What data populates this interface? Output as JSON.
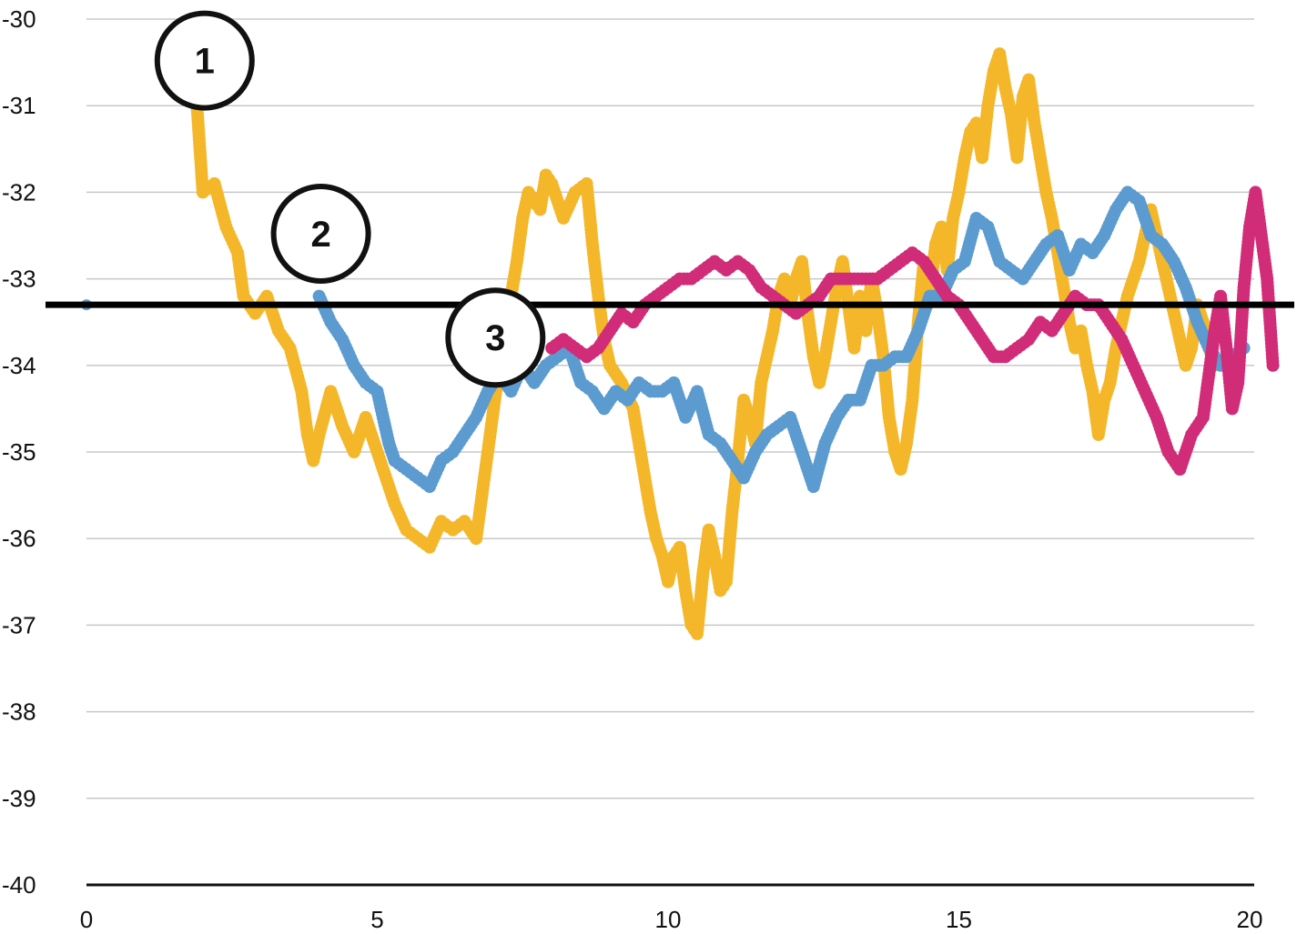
{
  "chart_data": {
    "type": "scatter",
    "title": "",
    "xlabel": "",
    "ylabel": "",
    "xlim": [
      0,
      20
    ],
    "ylim": [
      -40,
      -30
    ],
    "x_ticks": [
      "0",
      "5",
      "10",
      "15",
      "20"
    ],
    "y_ticks": [
      "-30",
      "-31",
      "-32",
      "-33",
      "-34",
      "-35",
      "-36",
      "-37",
      "-38",
      "-39",
      "-40"
    ],
    "grid": "horizontal",
    "legend": "none",
    "reference_line": {
      "y": -33.3,
      "color": "#000000"
    },
    "markers": [
      {
        "label": "1",
        "x": 2.0,
        "y": -30.5
      },
      {
        "label": "2",
        "x": 4.0,
        "y": -32.5
      },
      {
        "label": "3",
        "x": 7.0,
        "y": -33.7
      }
    ],
    "series": [
      {
        "color": "#F4B72A",
        "points": [
          [
            1.9,
            -31.0
          ],
          [
            2.0,
            -32.0
          ],
          [
            2.2,
            -31.9
          ],
          [
            2.4,
            -32.4
          ],
          [
            2.6,
            -32.7
          ],
          [
            2.7,
            -33.2
          ],
          [
            2.9,
            -33.4
          ],
          [
            3.1,
            -33.2
          ],
          [
            3.3,
            -33.6
          ],
          [
            3.5,
            -33.8
          ],
          [
            3.7,
            -34.3
          ],
          [
            3.8,
            -34.8
          ],
          [
            3.9,
            -35.1
          ],
          [
            4.0,
            -34.8
          ],
          [
            4.2,
            -34.3
          ],
          [
            4.4,
            -34.7
          ],
          [
            4.6,
            -35.0
          ],
          [
            4.8,
            -34.6
          ],
          [
            5.0,
            -35.0
          ],
          [
            5.1,
            -35.2
          ],
          [
            5.3,
            -35.6
          ],
          [
            5.5,
            -35.9
          ],
          [
            5.7,
            -36.0
          ],
          [
            5.9,
            -36.1
          ],
          [
            6.1,
            -35.8
          ],
          [
            6.3,
            -35.9
          ],
          [
            6.5,
            -35.8
          ],
          [
            6.7,
            -36.0
          ],
          [
            6.8,
            -35.5
          ],
          [
            6.9,
            -35.0
          ],
          [
            7.0,
            -34.5
          ],
          [
            7.1,
            -34.0
          ],
          [
            7.2,
            -33.6
          ],
          [
            7.3,
            -33.2
          ],
          [
            7.4,
            -32.8
          ],
          [
            7.5,
            -32.3
          ],
          [
            7.6,
            -32.0
          ],
          [
            7.7,
            -32.1
          ],
          [
            7.8,
            -32.2
          ],
          [
            7.9,
            -31.8
          ],
          [
            8.0,
            -31.9
          ],
          [
            8.2,
            -32.3
          ],
          [
            8.4,
            -32.0
          ],
          [
            8.6,
            -31.9
          ],
          [
            8.7,
            -32.6
          ],
          [
            8.8,
            -33.2
          ],
          [
            8.9,
            -33.7
          ],
          [
            9.0,
            -34.0
          ],
          [
            9.2,
            -34.2
          ],
          [
            9.4,
            -34.5
          ],
          [
            9.5,
            -34.9
          ],
          [
            9.6,
            -35.3
          ],
          [
            9.7,
            -35.7
          ],
          [
            9.8,
            -36.0
          ],
          [
            9.9,
            -36.2
          ],
          [
            10.0,
            -36.5
          ],
          [
            10.1,
            -36.2
          ],
          [
            10.2,
            -36.1
          ],
          [
            10.3,
            -36.6
          ],
          [
            10.4,
            -37.0
          ],
          [
            10.5,
            -37.1
          ],
          [
            10.6,
            -36.4
          ],
          [
            10.7,
            -35.9
          ],
          [
            10.8,
            -36.2
          ],
          [
            10.9,
            -36.6
          ],
          [
            11.0,
            -36.5
          ],
          [
            11.1,
            -35.7
          ],
          [
            11.2,
            -35.1
          ],
          [
            11.3,
            -34.4
          ],
          [
            11.4,
            -34.6
          ],
          [
            11.5,
            -34.9
          ],
          [
            11.6,
            -34.2
          ],
          [
            11.7,
            -33.9
          ],
          [
            11.8,
            -33.6
          ],
          [
            11.9,
            -33.2
          ],
          [
            12.0,
            -33.0
          ],
          [
            12.1,
            -33.3
          ],
          [
            12.2,
            -33.0
          ],
          [
            12.3,
            -32.8
          ],
          [
            12.4,
            -33.4
          ],
          [
            12.5,
            -33.9
          ],
          [
            12.6,
            -34.2
          ],
          [
            12.7,
            -33.9
          ],
          [
            12.8,
            -33.5
          ],
          [
            12.9,
            -33.1
          ],
          [
            13.0,
            -32.8
          ],
          [
            13.1,
            -33.3
          ],
          [
            13.2,
            -33.8
          ],
          [
            13.3,
            -33.2
          ],
          [
            13.4,
            -33.6
          ],
          [
            13.5,
            -33.0
          ],
          [
            13.6,
            -33.4
          ],
          [
            13.7,
            -33.9
          ],
          [
            13.8,
            -34.6
          ],
          [
            13.9,
            -35.0
          ],
          [
            14.0,
            -35.2
          ],
          [
            14.1,
            -34.9
          ],
          [
            14.2,
            -34.4
          ],
          [
            14.3,
            -33.5
          ],
          [
            14.4,
            -32.8
          ],
          [
            14.5,
            -33.2
          ],
          [
            14.6,
            -32.6
          ],
          [
            14.7,
            -32.4
          ],
          [
            14.8,
            -32.9
          ],
          [
            14.9,
            -32.3
          ],
          [
            15.0,
            -32.0
          ],
          [
            15.1,
            -31.6
          ],
          [
            15.2,
            -31.3
          ],
          [
            15.3,
            -31.2
          ],
          [
            15.4,
            -31.6
          ],
          [
            15.5,
            -31.0
          ],
          [
            15.6,
            -30.6
          ],
          [
            15.7,
            -30.4
          ],
          [
            15.8,
            -30.8
          ],
          [
            15.9,
            -31.1
          ],
          [
            16.0,
            -31.6
          ],
          [
            16.1,
            -30.9
          ],
          [
            16.2,
            -30.7
          ],
          [
            16.3,
            -31.2
          ],
          [
            16.4,
            -31.6
          ],
          [
            16.5,
            -32.0
          ],
          [
            16.6,
            -32.3
          ],
          [
            16.7,
            -32.7
          ],
          [
            16.8,
            -33.1
          ],
          [
            16.9,
            -33.5
          ],
          [
            17.0,
            -33.8
          ],
          [
            17.1,
            -33.6
          ],
          [
            17.2,
            -34.0
          ],
          [
            17.3,
            -34.3
          ],
          [
            17.4,
            -34.8
          ],
          [
            17.5,
            -34.4
          ],
          [
            17.6,
            -34.2
          ],
          [
            17.7,
            -33.8
          ],
          [
            17.8,
            -33.5
          ],
          [
            17.9,
            -33.2
          ],
          [
            18.0,
            -33.0
          ],
          [
            18.1,
            -32.8
          ],
          [
            18.2,
            -32.5
          ],
          [
            18.3,
            -32.2
          ],
          [
            18.4,
            -32.5
          ],
          [
            18.5,
            -32.8
          ],
          [
            18.6,
            -33.1
          ],
          [
            18.7,
            -33.4
          ],
          [
            18.8,
            -33.7
          ],
          [
            18.9,
            -34.0
          ],
          [
            19.0,
            -33.8
          ],
          [
            19.1,
            -33.3
          ],
          [
            19.2,
            -33.5
          ],
          [
            19.3,
            -33.8
          ],
          [
            19.4,
            -34.0
          ]
        ]
      },
      {
        "color": "#5B9BD0",
        "points": [
          [
            4.0,
            -33.2
          ],
          [
            4.2,
            -33.5
          ],
          [
            4.4,
            -33.7
          ],
          [
            4.6,
            -34.0
          ],
          [
            4.8,
            -34.2
          ],
          [
            5.0,
            -34.3
          ],
          [
            5.1,
            -34.6
          ],
          [
            5.2,
            -34.9
          ],
          [
            5.3,
            -35.1
          ],
          [
            5.5,
            -35.2
          ],
          [
            5.7,
            -35.3
          ],
          [
            5.9,
            -35.4
          ],
          [
            6.1,
            -35.1
          ],
          [
            6.3,
            -35.0
          ],
          [
            6.5,
            -34.8
          ],
          [
            6.7,
            -34.6
          ],
          [
            6.9,
            -34.3
          ],
          [
            7.1,
            -34.1
          ],
          [
            7.3,
            -34.3
          ],
          [
            7.5,
            -34.0
          ],
          [
            7.7,
            -34.2
          ],
          [
            7.9,
            -34.0
          ],
          [
            8.1,
            -33.9
          ],
          [
            8.3,
            -33.8
          ],
          [
            8.5,
            -34.2
          ],
          [
            8.7,
            -34.3
          ],
          [
            8.9,
            -34.5
          ],
          [
            9.1,
            -34.3
          ],
          [
            9.3,
            -34.4
          ],
          [
            9.5,
            -34.2
          ],
          [
            9.7,
            -34.3
          ],
          [
            9.9,
            -34.3
          ],
          [
            10.1,
            -34.2
          ],
          [
            10.3,
            -34.6
          ],
          [
            10.5,
            -34.3
          ],
          [
            10.7,
            -34.8
          ],
          [
            10.9,
            -34.9
          ],
          [
            11.1,
            -35.1
          ],
          [
            11.3,
            -35.3
          ],
          [
            11.5,
            -35.0
          ],
          [
            11.7,
            -34.8
          ],
          [
            11.9,
            -34.7
          ],
          [
            12.1,
            -34.6
          ],
          [
            12.3,
            -35.0
          ],
          [
            12.5,
            -35.4
          ],
          [
            12.7,
            -34.9
          ],
          [
            12.9,
            -34.6
          ],
          [
            13.1,
            -34.4
          ],
          [
            13.3,
            -34.4
          ],
          [
            13.5,
            -34.0
          ],
          [
            13.7,
            -34.0
          ],
          [
            13.9,
            -33.9
          ],
          [
            14.1,
            -33.9
          ],
          [
            14.3,
            -33.6
          ],
          [
            14.5,
            -33.2
          ],
          [
            14.7,
            -33.2
          ],
          [
            14.9,
            -32.9
          ],
          [
            15.1,
            -32.8
          ],
          [
            15.3,
            -32.3
          ],
          [
            15.5,
            -32.4
          ],
          [
            15.7,
            -32.8
          ],
          [
            15.9,
            -32.9
          ],
          [
            16.1,
            -33.0
          ],
          [
            16.3,
            -32.8
          ],
          [
            16.5,
            -32.6
          ],
          [
            16.7,
            -32.5
          ],
          [
            16.9,
            -32.9
          ],
          [
            17.1,
            -32.6
          ],
          [
            17.3,
            -32.7
          ],
          [
            17.5,
            -32.5
          ],
          [
            17.7,
            -32.2
          ],
          [
            17.9,
            -32.0
          ],
          [
            18.1,
            -32.1
          ],
          [
            18.3,
            -32.5
          ],
          [
            18.5,
            -32.6
          ],
          [
            18.7,
            -32.8
          ],
          [
            18.9,
            -33.1
          ],
          [
            19.1,
            -33.5
          ],
          [
            19.3,
            -33.8
          ],
          [
            19.5,
            -34.0
          ],
          [
            19.7,
            -33.9
          ],
          [
            19.9,
            -33.8
          ]
        ]
      },
      {
        "color": "#D02C78",
        "points": [
          [
            8.0,
            -33.8
          ],
          [
            8.2,
            -33.7
          ],
          [
            8.4,
            -33.8
          ],
          [
            8.6,
            -33.9
          ],
          [
            8.8,
            -33.8
          ],
          [
            9.0,
            -33.6
          ],
          [
            9.2,
            -33.4
          ],
          [
            9.4,
            -33.5
          ],
          [
            9.6,
            -33.3
          ],
          [
            9.8,
            -33.2
          ],
          [
            10.0,
            -33.1
          ],
          [
            10.2,
            -33.0
          ],
          [
            10.4,
            -33.0
          ],
          [
            10.6,
            -32.9
          ],
          [
            10.8,
            -32.8
          ],
          [
            11.0,
            -32.9
          ],
          [
            11.2,
            -32.8
          ],
          [
            11.4,
            -32.9
          ],
          [
            11.6,
            -33.1
          ],
          [
            11.8,
            -33.2
          ],
          [
            12.0,
            -33.3
          ],
          [
            12.2,
            -33.4
          ],
          [
            12.4,
            -33.3
          ],
          [
            12.6,
            -33.2
          ],
          [
            12.8,
            -33.0
          ],
          [
            13.0,
            -33.0
          ],
          [
            13.2,
            -33.0
          ],
          [
            13.4,
            -33.0
          ],
          [
            13.6,
            -33.0
          ],
          [
            13.8,
            -32.9
          ],
          [
            14.0,
            -32.8
          ],
          [
            14.2,
            -32.7
          ],
          [
            14.4,
            -32.8
          ],
          [
            14.6,
            -33.0
          ],
          [
            14.8,
            -33.2
          ],
          [
            15.0,
            -33.3
          ],
          [
            15.2,
            -33.5
          ],
          [
            15.4,
            -33.7
          ],
          [
            15.6,
            -33.9
          ],
          [
            15.8,
            -33.9
          ],
          [
            16.0,
            -33.8
          ],
          [
            16.2,
            -33.7
          ],
          [
            16.4,
            -33.5
          ],
          [
            16.6,
            -33.6
          ],
          [
            16.8,
            -33.4
          ],
          [
            17.0,
            -33.2
          ],
          [
            17.2,
            -33.3
          ],
          [
            17.4,
            -33.3
          ],
          [
            17.6,
            -33.5
          ],
          [
            17.8,
            -33.7
          ],
          [
            18.0,
            -34.0
          ],
          [
            18.2,
            -34.3
          ],
          [
            18.4,
            -34.6
          ],
          [
            18.6,
            -35.0
          ],
          [
            18.8,
            -35.2
          ],
          [
            19.0,
            -34.8
          ],
          [
            19.2,
            -34.6
          ],
          [
            19.3,
            -34.1
          ],
          [
            19.4,
            -33.6
          ],
          [
            19.5,
            -33.2
          ],
          [
            19.6,
            -33.8
          ],
          [
            19.7,
            -34.5
          ],
          [
            19.8,
            -34.2
          ],
          [
            19.9,
            -33.1
          ],
          [
            20.0,
            -32.4
          ],
          [
            20.1,
            -32.0
          ],
          [
            20.2,
            -32.5
          ],
          [
            20.3,
            -33.0
          ],
          [
            20.4,
            -34.0
          ]
        ]
      }
    ]
  }
}
